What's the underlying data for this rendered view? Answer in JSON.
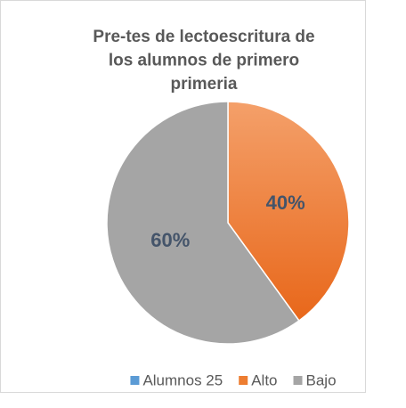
{
  "chart_data": {
    "type": "pie",
    "title": [
      "Pre-tes de lectoescritura de",
      "los alumnos de primero",
      "primeria"
    ],
    "categories": [
      "Alumnos 25",
      "Alto",
      "Bajo"
    ],
    "values": [
      0,
      40,
      60
    ],
    "value_labels": [
      null,
      "40%",
      "60%"
    ],
    "colors": [
      "#5b9bd5",
      "#ed7d31",
      "#a5a5a5"
    ],
    "legend": "bottom"
  }
}
